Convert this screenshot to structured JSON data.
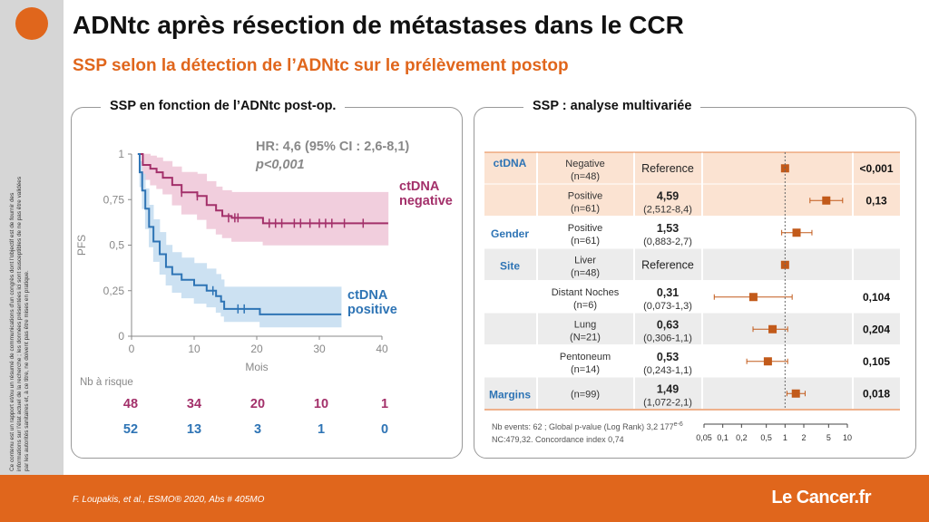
{
  "slide": {
    "title": "ADNtc après résection de métastases dans le CCR",
    "subtitle": "SSP selon la détection de l’ADNtc sur le prélèvement postop",
    "side_text": "Ce contenu est un rapport et/ou un résumé de communications d’un congrès dont l’objectif est de fournir des informations sur l’état actuel de la recherche ; les données présentées ici sont susceptibles de ne pas être validées par les autorités sanitaires et, à ce titre, ne doivent pas être mises en pratique.",
    "reference": "F. Loupakis, et al., ESMO® 2020, Abs # 405MO",
    "logo": "Le Cancer.fr",
    "accent_color": "#e0661c"
  },
  "left_panel": {
    "title": "SSP en fonction de l’ADNtc post-op.",
    "hr_text": "HR: 4,6 (95% CI : 2,6-8,1)",
    "p_text": "p<0,001",
    "risk_label": "Nb à risque"
  },
  "right_panel": {
    "title": "SSP : analyse multivariée",
    "footnote_line1": "Nb events: 62 ; Global p-value (Log Rank) 3,2 177e-6",
    "footnote_line2": "NC:479,32. Concordance index 0,74"
  },
  "chart_data": [
    {
      "type": "line",
      "title": "",
      "xlabel": "Mois",
      "ylabel": "PFS",
      "xlim": [
        0,
        40
      ],
      "ylim": [
        0,
        1
      ],
      "xticks": [
        "0",
        "10",
        "20",
        "30",
        "40"
      ],
      "yticks": [
        "0",
        "0,25",
        "0,5",
        "0,75",
        "1"
      ],
      "grid": false,
      "series": [
        {
          "name": "ctDNA negative",
          "color": "#a3306a",
          "band_color": "#efc6d8",
          "steps": [
            [
              1,
              1
            ],
            [
              1.8,
              0.94
            ],
            [
              3,
              0.92
            ],
            [
              4,
              0.9
            ],
            [
              5,
              0.87
            ],
            [
              6.5,
              0.83
            ],
            [
              8,
              0.79
            ],
            [
              10.5,
              0.77
            ],
            [
              12,
              0.72
            ],
            [
              13.5,
              0.69
            ],
            [
              14.5,
              0.66
            ],
            [
              16,
              0.65
            ],
            [
              21,
              0.62
            ],
            [
              41,
              0.62
            ]
          ],
          "lower": [
            [
              1,
              1
            ],
            [
              1.8,
              0.86
            ],
            [
              3,
              0.83
            ],
            [
              4,
              0.81
            ],
            [
              5,
              0.78
            ],
            [
              6.5,
              0.72
            ],
            [
              8,
              0.67
            ],
            [
              10.5,
              0.64
            ],
            [
              12,
              0.59
            ],
            [
              13.5,
              0.56
            ],
            [
              14.5,
              0.54
            ],
            [
              16,
              0.52
            ],
            [
              21,
              0.5
            ],
            [
              41,
              0.5
            ]
          ],
          "upper": [
            [
              1,
              1
            ],
            [
              1.8,
              1
            ],
            [
              3,
              0.99
            ],
            [
              4,
              0.98
            ],
            [
              5,
              0.96
            ],
            [
              6.5,
              0.93
            ],
            [
              8,
              0.9
            ],
            [
              10.5,
              0.89
            ],
            [
              12,
              0.85
            ],
            [
              13.5,
              0.82
            ],
            [
              14.5,
              0.8
            ],
            [
              16,
              0.79
            ],
            [
              21,
              0.79
            ],
            [
              41,
              0.79
            ]
          ],
          "censored": [
            [
              8,
              0.79
            ],
            [
              10.5,
              0.77
            ],
            [
              15.5,
              0.65
            ],
            [
              16.5,
              0.65
            ],
            [
              17,
              0.65
            ],
            [
              22,
              0.62
            ],
            [
              23,
              0.62
            ],
            [
              24,
              0.62
            ],
            [
              26,
              0.62
            ],
            [
              27,
              0.62
            ],
            [
              28.5,
              0.62
            ],
            [
              30,
              0.62
            ],
            [
              31,
              0.62
            ],
            [
              32,
              0.62
            ],
            [
              34,
              0.62
            ],
            [
              37,
              0.62
            ]
          ],
          "at_risk": [
            "48",
            "34",
            "20",
            "10",
            "1"
          ]
        },
        {
          "name": "ctDNA positive",
          "color": "#2e74b5",
          "band_color": "#c4dcf0",
          "steps": [
            [
              1,
              1
            ],
            [
              1.3,
              0.9
            ],
            [
              1.7,
              0.8
            ],
            [
              2.2,
              0.7
            ],
            [
              2.8,
              0.6
            ],
            [
              3.5,
              0.52
            ],
            [
              4.5,
              0.45
            ],
            [
              5.5,
              0.38
            ],
            [
              6.5,
              0.34
            ],
            [
              8,
              0.31
            ],
            [
              10,
              0.28
            ],
            [
              12,
              0.25
            ],
            [
              13.5,
              0.22
            ],
            [
              14.3,
              0.19
            ],
            [
              14.8,
              0.15
            ],
            [
              20.5,
              0.12
            ],
            [
              33.5,
              0.12
            ]
          ],
          "lower": [
            [
              1,
              1
            ],
            [
              1.3,
              0.82
            ],
            [
              1.7,
              0.7
            ],
            [
              2.2,
              0.59
            ],
            [
              2.8,
              0.49
            ],
            [
              3.5,
              0.41
            ],
            [
              4.5,
              0.34
            ],
            [
              5.5,
              0.28
            ],
            [
              6.5,
              0.24
            ],
            [
              8,
              0.21
            ],
            [
              10,
              0.18
            ],
            [
              12,
              0.16
            ],
            [
              13.5,
              0.13
            ],
            [
              14.3,
              0.11
            ],
            [
              14.8,
              0.08
            ],
            [
              20.5,
              0.05
            ],
            [
              33.5,
              0.05
            ]
          ],
          "upper": [
            [
              1,
              1
            ],
            [
              1.3,
              0.96
            ],
            [
              1.7,
              0.89
            ],
            [
              2.2,
              0.81
            ],
            [
              2.8,
              0.72
            ],
            [
              3.5,
              0.64
            ],
            [
              4.5,
              0.57
            ],
            [
              5.5,
              0.5
            ],
            [
              6.5,
              0.46
            ],
            [
              8,
              0.43
            ],
            [
              10,
              0.4
            ],
            [
              12,
              0.37
            ],
            [
              13.5,
              0.34
            ],
            [
              14.3,
              0.31
            ],
            [
              14.8,
              0.27
            ],
            [
              20.5,
              0.27
            ],
            [
              33.5,
              0.27
            ]
          ],
          "censored": [
            [
              13,
              0.25
            ],
            [
              17,
              0.15
            ],
            [
              18,
              0.15
            ]
          ],
          "at_risk": [
            "52",
            "13",
            "3",
            "1",
            "0"
          ]
        }
      ]
    },
    {
      "type": "scatter",
      "title": "",
      "xscale": "log",
      "xticks": [
        "0,05",
        "0,1",
        "0,2",
        "0,5",
        "1",
        "2",
        "5",
        "10"
      ],
      "rows": [
        {
          "group": "ctDNA",
          "level": "Negative",
          "n": "(n=48)",
          "hr": "Reference",
          "ci": "",
          "p": "<0,001",
          "point": 1,
          "low": null,
          "high": null,
          "shade": true
        },
        {
          "group": "",
          "level": "Positive",
          "n": "(n=61)",
          "hr": "4,59",
          "ci": "(2,512-8,4)",
          "p": "0,13",
          "point": 4.59,
          "low": 2.512,
          "high": 8.4,
          "shade": true
        },
        {
          "group": "Gender",
          "level": "Positive",
          "n": "(n=61)",
          "hr": "1,53",
          "ci": "(0,883-2,7)",
          "p": "",
          "point": 1.53,
          "low": 0.883,
          "high": 2.7,
          "shade": false
        },
        {
          "group": "Site",
          "level": "Liver",
          "n": "(n=48)",
          "hr": "Reference",
          "ci": "",
          "p": "",
          "point": 1,
          "low": null,
          "high": null,
          "shade": true
        },
        {
          "group": "",
          "level": "Distant Noches",
          "n": "(n=6)",
          "hr": "0,31",
          "ci": "(0,073-1,3)",
          "p": "0,104",
          "point": 0.31,
          "low": 0.073,
          "high": 1.3,
          "shade": false
        },
        {
          "group": "",
          "level": "Lung",
          "n": "(N=21)",
          "hr": "0,63",
          "ci": "(0,306-1,1)",
          "p": "0,204",
          "point": 0.63,
          "low": 0.306,
          "high": 1.1,
          "shade": true
        },
        {
          "group": "",
          "level": "Pentoneum",
          "n": "(n=14)",
          "hr": "0,53",
          "ci": "(0,243-1,1)",
          "p": "0,105",
          "point": 0.53,
          "low": 0.243,
          "high": 1.1,
          "shade": false
        },
        {
          "group": "Margins",
          "level": "",
          "n": "(n=99)",
          "hr": "1,49",
          "ci": "(1,072-2,1)",
          "p": "0,018",
          "point": 1.49,
          "low": 1.072,
          "high": 2.1,
          "shade": true
        }
      ]
    }
  ]
}
